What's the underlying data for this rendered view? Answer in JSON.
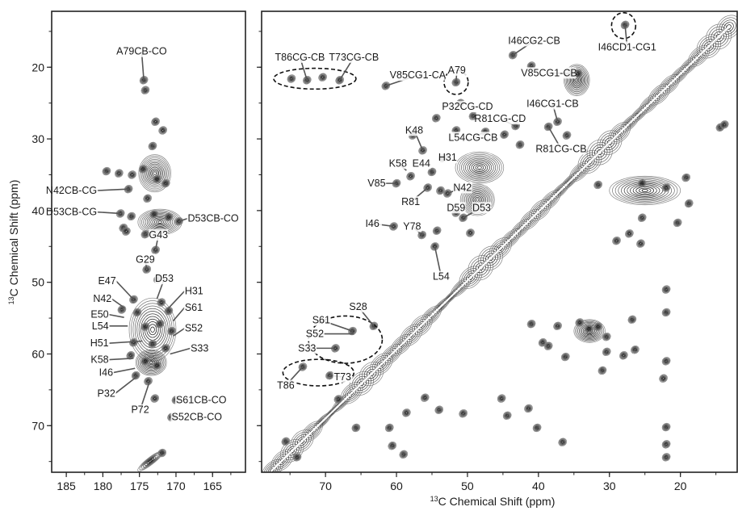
{
  "figure": {
    "ylabel_sup": "13",
    "ylabel_rest": "C Chemical Shift (ppm)",
    "xlabel_sup": "13",
    "xlabel_rest": "C Chemical Shift (ppm)"
  },
  "chart_data": [
    {
      "type": "scatter",
      "panel": "left",
      "xlabel": "",
      "ylabel": "13C Chemical Shift (ppm)",
      "xlim": [
        187,
        160.5
      ],
      "ylim": [
        12.2,
        76.5
      ],
      "xticks": [
        185,
        180,
        175,
        170,
        165
      ],
      "yticks": [
        20,
        30,
        40,
        50,
        60,
        70
      ],
      "grid": false,
      "peaks": [
        {
          "x": 174.4,
          "y": 21.8
        },
        {
          "x": 174.2,
          "y": 23.2
        },
        {
          "x": 172.8,
          "y": 27.6
        },
        {
          "x": 171.8,
          "y": 28.8
        },
        {
          "x": 173.2,
          "y": 31.0
        },
        {
          "x": 179.5,
          "y": 34.5
        },
        {
          "x": 177.8,
          "y": 34.8
        },
        {
          "x": 176.0,
          "y": 35.0
        },
        {
          "x": 174.5,
          "y": 34.2
        },
        {
          "x": 172.6,
          "y": 35.6
        },
        {
          "x": 171.4,
          "y": 36.2
        },
        {
          "x": 176.5,
          "y": 37.0
        },
        {
          "x": 173.9,
          "y": 38.3
        },
        {
          "x": 177.6,
          "y": 40.4
        },
        {
          "x": 176.1,
          "y": 40.8
        },
        {
          "x": 173.0,
          "y": 40.5
        },
        {
          "x": 171.0,
          "y": 40.9
        },
        {
          "x": 169.6,
          "y": 41.5
        },
        {
          "x": 177.2,
          "y": 42.4
        },
        {
          "x": 176.8,
          "y": 42.9
        },
        {
          "x": 174.2,
          "y": 43.3
        },
        {
          "x": 172.8,
          "y": 45.5
        },
        {
          "x": 174.0,
          "y": 48.2
        },
        {
          "x": 172.5,
          "y": 49.6
        },
        {
          "x": 175.8,
          "y": 52.4
        },
        {
          "x": 172.0,
          "y": 52.8
        },
        {
          "x": 177.4,
          "y": 53.8
        },
        {
          "x": 175.3,
          "y": 54.2
        },
        {
          "x": 171.0,
          "y": 54.0
        },
        {
          "x": 174.2,
          "y": 56.2
        },
        {
          "x": 172.2,
          "y": 55.8
        },
        {
          "x": 170.6,
          "y": 56.8
        },
        {
          "x": 175.8,
          "y": 58.4
        },
        {
          "x": 173.2,
          "y": 58.6
        },
        {
          "x": 171.4,
          "y": 59.2
        },
        {
          "x": 176.2,
          "y": 60.2
        },
        {
          "x": 174.2,
          "y": 61.0
        },
        {
          "x": 172.6,
          "y": 61.6
        },
        {
          "x": 175.5,
          "y": 63.0
        },
        {
          "x": 173.8,
          "y": 63.8
        },
        {
          "x": 172.9,
          "y": 66.2
        },
        {
          "x": 170.0,
          "y": 66.4
        },
        {
          "x": 170.6,
          "y": 68.8
        },
        {
          "x": 171.9,
          "y": 73.8
        }
      ],
      "ridges": [
        {
          "x1": 175.2,
          "y1": 76.3,
          "x2": 171.8,
          "y2": 73.6
        }
      ],
      "blobs": [
        {
          "cx": 172.9,
          "cy": 34.8,
          "rx": 2.2,
          "ry": 2.6
        },
        {
          "cx": 172.2,
          "cy": 41.6,
          "rx": 3.0,
          "ry": 1.8
        },
        {
          "cx": 173.2,
          "cy": 56.6,
          "rx": 3.2,
          "ry": 4.4
        },
        {
          "cx": 173.4,
          "cy": 61.2,
          "rx": 2.1,
          "ry": 1.8
        }
      ],
      "annotations": [
        {
          "text": "A79CB-CO",
          "x": 174.4,
          "y": 21.8,
          "tx": 174.7,
          "ty": 17.8,
          "anchor": "middle"
        },
        {
          "text": "N42CB-CG",
          "x": 176.5,
          "y": 37.0,
          "tx": 180.8,
          "ty": 37.2,
          "anchor": "end"
        },
        {
          "text": "D53CB-CG",
          "x": 177.6,
          "y": 40.4,
          "tx": 180.8,
          "ty": 40.2,
          "anchor": "end"
        },
        {
          "text": "D53CB-CO",
          "x": 169.6,
          "y": 41.5,
          "tx": 168.4,
          "ty": 41.1,
          "anchor": "start"
        },
        {
          "text": "G43",
          "x": 172.8,
          "y": 45.5,
          "tx": 172.4,
          "ty": 43.4,
          "anchor": "middle"
        },
        {
          "text": "G29",
          "x": 174.0,
          "y": 48.2,
          "tx": 174.2,
          "ty": 46.8,
          "anchor": "middle"
        },
        {
          "text": "D53",
          "x": 172.6,
          "y": 52.3,
          "tx": 171.6,
          "ty": 49.5,
          "anchor": "middle"
        },
        {
          "text": "E47",
          "x": 175.8,
          "y": 52.4,
          "tx": 178.2,
          "ty": 49.8,
          "anchor": "end"
        },
        {
          "text": "H31",
          "x": 171.2,
          "y": 53.8,
          "tx": 168.8,
          "ty": 51.2,
          "anchor": "start"
        },
        {
          "text": "N42",
          "x": 177.0,
          "y": 53.6,
          "tx": 178.8,
          "ty": 52.3,
          "anchor": "end"
        },
        {
          "text": "S61",
          "x": 170.4,
          "y": 55.4,
          "tx": 168.8,
          "ty": 53.5,
          "anchor": "start"
        },
        {
          "text": "E50",
          "x": 177.1,
          "y": 54.9,
          "tx": 179.2,
          "ty": 54.5,
          "anchor": "end"
        },
        {
          "text": "L54",
          "x": 176.6,
          "y": 56.1,
          "tx": 179.2,
          "ty": 56.1,
          "anchor": "end"
        },
        {
          "text": "S52",
          "x": 170.4,
          "y": 57.5,
          "tx": 168.8,
          "ty": 56.4,
          "anchor": "start"
        },
        {
          "text": "H51",
          "x": 174.6,
          "y": 58.2,
          "tx": 179.2,
          "ty": 58.5,
          "anchor": "end"
        },
        {
          "text": "S33",
          "x": 170.8,
          "y": 60.0,
          "tx": 168.0,
          "ty": 59.2,
          "anchor": "start"
        },
        {
          "text": "K58",
          "x": 175.8,
          "y": 60.6,
          "tx": 179.2,
          "ty": 60.8,
          "anchor": "end"
        },
        {
          "text": "I46",
          "x": 175.6,
          "y": 62.0,
          "tx": 178.6,
          "ty": 62.6,
          "anchor": "end"
        },
        {
          "text": "P32",
          "x": 175.4,
          "y": 63.2,
          "tx": 178.3,
          "ty": 65.5,
          "anchor": "end"
        },
        {
          "text": "P72",
          "x": 173.6,
          "y": 63.8,
          "tx": 174.9,
          "ty": 67.8,
          "anchor": "middle"
        },
        {
          "text": "S61CB-CO",
          "x": 170.0,
          "y": 66.4,
          "tx": 170.0,
          "ty": 66.4,
          "anchor": "start"
        },
        {
          "text": "S52CB-CO",
          "x": 170.6,
          "y": 68.8,
          "tx": 170.6,
          "ty": 68.8,
          "anchor": "start"
        }
      ]
    },
    {
      "type": "scatter",
      "panel": "right",
      "xlabel": "13C Chemical Shift (ppm)",
      "ylabel": "",
      "xlim": [
        79,
        12.0
      ],
      "ylim": [
        12.2,
        76.5
      ],
      "xticks": [
        70,
        60,
        50,
        40,
        30,
        20
      ],
      "yticks": [
        20,
        30,
        40,
        50,
        60,
        70
      ],
      "grid": false,
      "diagonal": [
        [
          77.5,
          76.2
        ],
        [
          13.2,
          14.4
        ]
      ],
      "peaks": [
        {
          "x": 74.8,
          "y": 21.6
        },
        {
          "x": 72.6,
          "y": 21.8
        },
        {
          "x": 70.4,
          "y": 21.4
        },
        {
          "x": 68.0,
          "y": 21.8
        },
        {
          "x": 61.5,
          "y": 22.6
        },
        {
          "x": 51.6,
          "y": 22.1
        },
        {
          "x": 51.0,
          "y": 25.0
        },
        {
          "x": 49.2,
          "y": 26.8
        },
        {
          "x": 43.6,
          "y": 18.3
        },
        {
          "x": 41.0,
          "y": 19.8
        },
        {
          "x": 34.4,
          "y": 20.9
        },
        {
          "x": 27.8,
          "y": 14.1
        },
        {
          "x": 54.4,
          "y": 27.1
        },
        {
          "x": 51.6,
          "y": 28.8
        },
        {
          "x": 47.5,
          "y": 29.0
        },
        {
          "x": 44.8,
          "y": 29.4
        },
        {
          "x": 43.2,
          "y": 28.2
        },
        {
          "x": 37.3,
          "y": 27.6
        },
        {
          "x": 42.6,
          "y": 30.8
        },
        {
          "x": 38.6,
          "y": 28.3
        },
        {
          "x": 36.0,
          "y": 29.5
        },
        {
          "x": 57.7,
          "y": 29.5
        },
        {
          "x": 56.3,
          "y": 31.6
        },
        {
          "x": 53.5,
          "y": 32.7
        },
        {
          "x": 55.0,
          "y": 34.6
        },
        {
          "x": 58.0,
          "y": 35.2
        },
        {
          "x": 60.0,
          "y": 36.2
        },
        {
          "x": 55.6,
          "y": 36.8
        },
        {
          "x": 53.8,
          "y": 37.2
        },
        {
          "x": 52.8,
          "y": 37.6
        },
        {
          "x": 51.6,
          "y": 40.3
        },
        {
          "x": 50.6,
          "y": 41.0
        },
        {
          "x": 60.4,
          "y": 42.2
        },
        {
          "x": 56.4,
          "y": 43.4
        },
        {
          "x": 54.3,
          "y": 42.8
        },
        {
          "x": 54.6,
          "y": 45.0
        },
        {
          "x": 49.6,
          "y": 43.1
        },
        {
          "x": 29.0,
          "y": 44.2
        },
        {
          "x": 27.2,
          "y": 43.2
        },
        {
          "x": 25.4,
          "y": 41.0
        },
        {
          "x": 20.4,
          "y": 41.7
        },
        {
          "x": 14.4,
          "y": 28.4
        },
        {
          "x": 13.8,
          "y": 28.0
        },
        {
          "x": 25.4,
          "y": 36.2
        },
        {
          "x": 22.0,
          "y": 36.8
        },
        {
          "x": 19.2,
          "y": 35.4
        },
        {
          "x": 18.8,
          "y": 39.0
        },
        {
          "x": 31.6,
          "y": 36.4
        },
        {
          "x": 25.6,
          "y": 44.6
        },
        {
          "x": 41.0,
          "y": 55.8
        },
        {
          "x": 37.3,
          "y": 56.1
        },
        {
          "x": 34.2,
          "y": 55.6
        },
        {
          "x": 32.9,
          "y": 56.5
        },
        {
          "x": 31.6,
          "y": 56.2
        },
        {
          "x": 30.4,
          "y": 57.6
        },
        {
          "x": 26.8,
          "y": 55.2
        },
        {
          "x": 22.0,
          "y": 54.2
        },
        {
          "x": 22.0,
          "y": 51.0
        },
        {
          "x": 39.4,
          "y": 58.4
        },
        {
          "x": 36.2,
          "y": 60.4
        },
        {
          "x": 30.4,
          "y": 59.7
        },
        {
          "x": 28.0,
          "y": 60.2
        },
        {
          "x": 22.0,
          "y": 61.0
        },
        {
          "x": 22.4,
          "y": 63.4
        },
        {
          "x": 31.0,
          "y": 62.3
        },
        {
          "x": 38.6,
          "y": 58.9
        },
        {
          "x": 26.4,
          "y": 59.4
        },
        {
          "x": 22.0,
          "y": 70.2
        },
        {
          "x": 22.0,
          "y": 72.6
        },
        {
          "x": 22.0,
          "y": 74.4
        },
        {
          "x": 61.0,
          "y": 70.3
        },
        {
          "x": 58.6,
          "y": 68.2
        },
        {
          "x": 56.0,
          "y": 66.1
        },
        {
          "x": 54.0,
          "y": 67.8
        },
        {
          "x": 50.6,
          "y": 68.3
        },
        {
          "x": 45.2,
          "y": 66.2
        },
        {
          "x": 44.4,
          "y": 68.6
        },
        {
          "x": 41.4,
          "y": 67.6
        },
        {
          "x": 40.2,
          "y": 70.3
        },
        {
          "x": 36.6,
          "y": 72.3
        },
        {
          "x": 65.7,
          "y": 70.3
        },
        {
          "x": 60.6,
          "y": 72.8
        },
        {
          "x": 59.0,
          "y": 74.0
        },
        {
          "x": 75.6,
          "y": 72.2
        },
        {
          "x": 74.0,
          "y": 74.4
        },
        {
          "x": 66.2,
          "y": 56.8
        },
        {
          "x": 63.2,
          "y": 56.1
        },
        {
          "x": 68.6,
          "y": 59.2
        },
        {
          "x": 73.2,
          "y": 61.8
        },
        {
          "x": 69.4,
          "y": 63.0
        },
        {
          "x": 68.2,
          "y": 66.3
        }
      ],
      "blobs": [
        {
          "cx": 34.6,
          "cy": 21.8,
          "rx": 1.8,
          "ry": 2.2
        },
        {
          "cx": 48.3,
          "cy": 34.0,
          "rx": 3.4,
          "ry": 2.2
        },
        {
          "cx": 48.6,
          "cy": 38.5,
          "rx": 2.4,
          "ry": 2.2
        },
        {
          "cx": 25.0,
          "cy": 37.2,
          "rx": 5.0,
          "ry": 2.0
        },
        {
          "cx": 32.8,
          "cy": 56.8,
          "rx": 2.2,
          "ry": 1.6
        }
      ],
      "annotations": [
        {
          "text": "T86CG-CB",
          "x": 72.6,
          "y": 21.8,
          "tx": 73.6,
          "ty": 18.6,
          "anchor": "middle"
        },
        {
          "text": "T73CG-CB",
          "x": 68.0,
          "y": 21.8,
          "tx": 66.0,
          "ty": 18.6,
          "anchor": "middle"
        },
        {
          "text": "V85CG1-CA",
          "x": 61.5,
          "y": 22.6,
          "tx": 57.0,
          "ty": 21.1,
          "anchor": "middle"
        },
        {
          "text": "A79",
          "x": 51.6,
          "y": 22.1,
          "tx": 51.5,
          "ty": 20.4,
          "anchor": "middle"
        },
        {
          "text": "I46CG2-CB",
          "x": 43.6,
          "y": 18.3,
          "tx": 40.6,
          "ty": 16.3,
          "anchor": "middle"
        },
        {
          "text": "V85CG1-CB",
          "x": 34.4,
          "y": 20.9,
          "tx": 38.5,
          "ty": 20.8,
          "anchor": "middle"
        },
        {
          "text": "I46CD1-CG1",
          "x": 27.8,
          "y": 14.1,
          "tx": 27.5,
          "ty": 17.2,
          "anchor": "middle"
        },
        {
          "text": "P32CG-CD",
          "x": 51.0,
          "y": 25.0,
          "tx": 50.0,
          "ty": 25.5,
          "anchor": "middle"
        },
        {
          "text": "R81CG-CD",
          "x": 43.2,
          "y": 28.2,
          "tx": 45.4,
          "ty": 27.2,
          "anchor": "middle"
        },
        {
          "text": "I46CG1-CB",
          "x": 37.3,
          "y": 27.6,
          "tx": 38.0,
          "ty": 25.1,
          "anchor": "middle"
        },
        {
          "text": "K48",
          "x": 56.3,
          "y": 31.6,
          "tx": 57.5,
          "ty": 28.8,
          "anchor": "middle"
        },
        {
          "text": "L54CG-CB",
          "x": 47.5,
          "y": 29.0,
          "tx": 49.2,
          "ty": 29.8,
          "anchor": "middle"
        },
        {
          "text": "R81CG-CB",
          "x": 38.6,
          "y": 28.3,
          "tx": 36.8,
          "ty": 31.4,
          "anchor": "middle"
        },
        {
          "text": "K58",
          "x": 58.6,
          "y": 34.4,
          "tx": 59.8,
          "ty": 33.4,
          "anchor": "middle"
        },
        {
          "text": "E44",
          "x": 56.3,
          "y": 33.6,
          "tx": 56.5,
          "ty": 33.4,
          "anchor": "middle"
        },
        {
          "text": "H31",
          "x": 53.5,
          "y": 32.7,
          "tx": 52.8,
          "ty": 32.6,
          "anchor": "middle"
        },
        {
          "text": "V85",
          "x": 60.0,
          "y": 36.2,
          "tx": 62.8,
          "ty": 36.2,
          "anchor": "middle"
        },
        {
          "text": "N42",
          "x": 52.8,
          "y": 37.6,
          "tx": 50.7,
          "ty": 36.8,
          "anchor": "middle"
        },
        {
          "text": "R81",
          "x": 55.6,
          "y": 36.8,
          "tx": 58.0,
          "ty": 38.8,
          "anchor": "middle"
        },
        {
          "text": "D59",
          "x": 51.6,
          "y": 40.3,
          "tx": 51.6,
          "ty": 39.6,
          "anchor": "middle"
        },
        {
          "text": "D53",
          "x": 50.6,
          "y": 41.0,
          "tx": 48.0,
          "ty": 39.6,
          "anchor": "middle"
        },
        {
          "text": "I46",
          "x": 60.4,
          "y": 42.2,
          "tx": 63.4,
          "ty": 41.8,
          "anchor": "middle"
        },
        {
          "text": "Y78",
          "x": 56.4,
          "y": 43.4,
          "tx": 57.8,
          "ty": 42.2,
          "anchor": "middle"
        },
        {
          "text": "L54",
          "x": 54.6,
          "y": 45.0,
          "tx": 53.7,
          "ty": 49.2,
          "anchor": "middle"
        },
        {
          "text": "S28",
          "x": 63.2,
          "y": 56.1,
          "tx": 65.4,
          "ty": 53.4,
          "anchor": "middle"
        },
        {
          "text": "S61",
          "x": 66.2,
          "y": 56.8,
          "tx": 70.6,
          "ty": 55.3,
          "anchor": "middle"
        },
        {
          "text": "S52",
          "x": 66.0,
          "y": 57.2,
          "tx": 71.5,
          "ty": 57.2,
          "anchor": "middle"
        },
        {
          "text": "S33",
          "x": 68.6,
          "y": 59.2,
          "tx": 72.6,
          "ty": 59.2,
          "anchor": "middle"
        },
        {
          "text": "T73",
          "x": 69.4,
          "y": 63.0,
          "tx": 67.6,
          "ty": 63.2,
          "anchor": "middle"
        },
        {
          "text": "T86",
          "x": 73.2,
          "y": 61.8,
          "tx": 75.6,
          "ty": 64.4,
          "anchor": "middle"
        }
      ],
      "ellipses": [
        {
          "cx": 71.5,
          "cy": 21.6,
          "rx": 5.8,
          "ry": 1.45
        },
        {
          "cx": 51.6,
          "cy": 22.1,
          "rx": 1.7,
          "ry": 1.7
        },
        {
          "cx": 28.0,
          "cy": 14.2,
          "rx": 1.7,
          "ry": 1.8
        },
        {
          "cx": 67.2,
          "cy": 58.0,
          "rx": 5.2,
          "ry": 3.3
        },
        {
          "cx": 71.0,
          "cy": 62.6,
          "rx": 5.0,
          "ry": 1.85
        }
      ]
    }
  ]
}
